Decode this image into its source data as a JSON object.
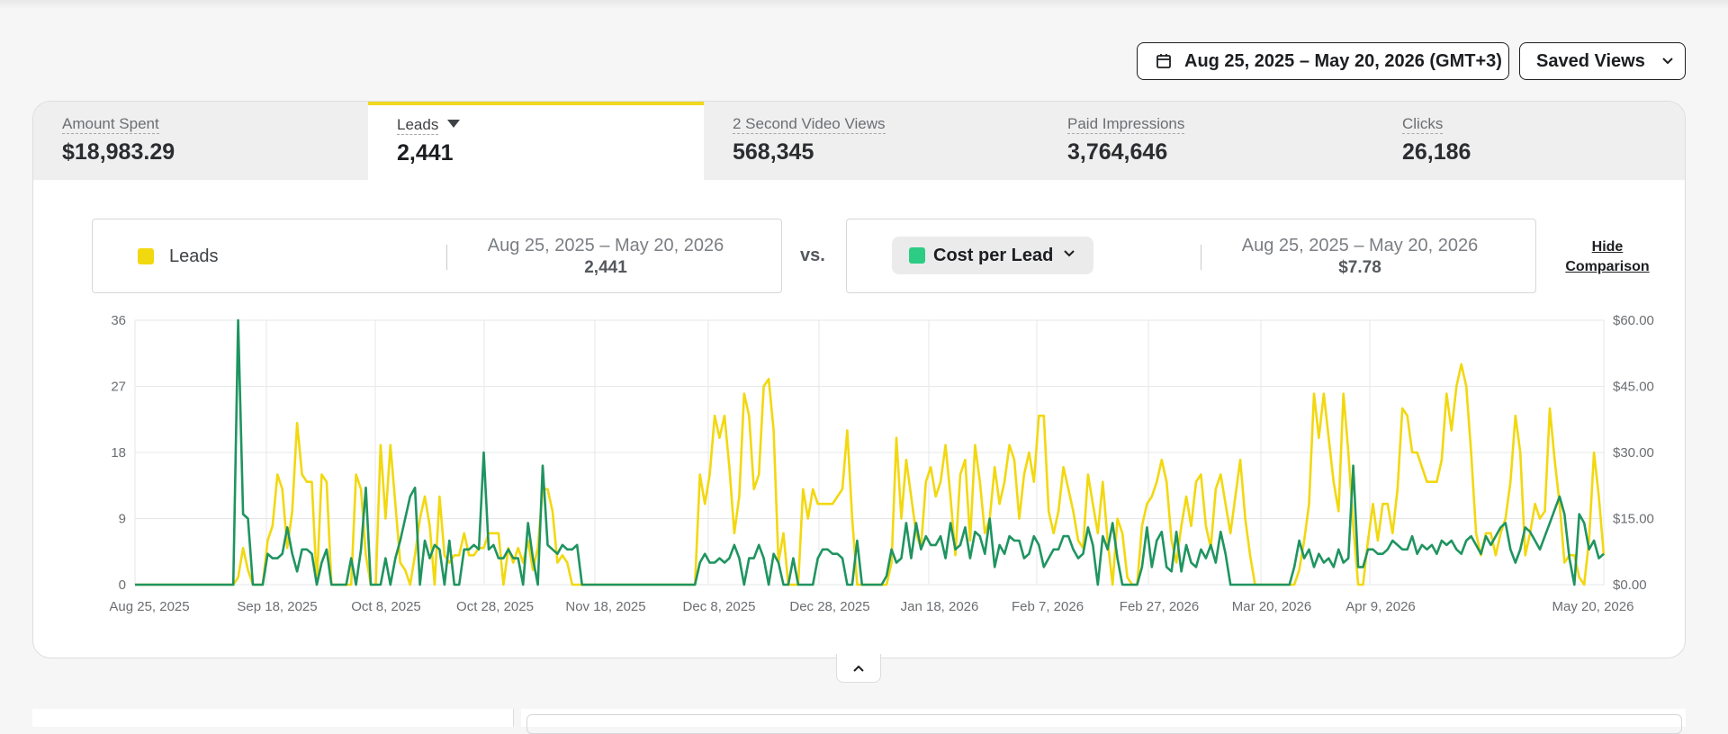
{
  "header": {
    "date_range": "Aug 25, 2025 – May 20, 2026 (GMT+3)",
    "saved_views_label": "Saved Views"
  },
  "tabs": [
    {
      "label": "Amount Spent",
      "value": "$18,983.29",
      "active": false
    },
    {
      "label": "Leads",
      "value": "2,441",
      "active": true
    },
    {
      "label": "2 Second Video Views",
      "value": "568,345",
      "active": false
    },
    {
      "label": "Paid Impressions",
      "value": "3,764,646",
      "active": false
    },
    {
      "label": "Clicks",
      "value": "26,186",
      "active": false
    }
  ],
  "comparison": {
    "primary": {
      "label": "Leads",
      "range": "Aug 25, 2025 – May 20, 2026",
      "value": "2,441",
      "color": "#f2d80f"
    },
    "vs_label": "vs.",
    "secondary": {
      "label": "Cost per Lead",
      "range": "Aug 25, 2025 – May 20, 2026",
      "value": "$7.78",
      "color": "#2dcc84"
    },
    "hide_label_line1": "Hide",
    "hide_label_line2": "Comparison"
  },
  "chart_data": {
    "type": "line",
    "x_start": "Aug 25, 2025",
    "x_end": "May 20, 2026",
    "x_tick_labels": [
      "Aug 25, 2025",
      "Sep 18, 2025",
      "Oct 8, 2025",
      "Oct 28, 2025",
      "Nov 18, 2025",
      "Dec 8, 2025",
      "Dec 28, 2025",
      "Jan 18, 2026",
      "Feb 7, 2026",
      "Feb 27, 2026",
      "Mar 20, 2026",
      "Apr 9, 2026",
      "May 20, 2026"
    ],
    "y_left_ticks": [
      "0",
      "9",
      "18",
      "27",
      "36"
    ],
    "y_left_range": [
      0,
      36
    ],
    "y_right_ticks": [
      "$0.00",
      "$15.00",
      "$30.00",
      "$45.00",
      "$60.00"
    ],
    "y_right_range": [
      0,
      60
    ],
    "grid": true,
    "series": [
      {
        "name": "Leads",
        "axis": "left",
        "color": "#f2d80f",
        "values": [
          0,
          0,
          0,
          0,
          0,
          0,
          0,
          0,
          0,
          0,
          0,
          0,
          0,
          0,
          0,
          0,
          0,
          0,
          0,
          0,
          0,
          1,
          5,
          2,
          0,
          0,
          0,
          6,
          8,
          15,
          13,
          5,
          10,
          22,
          15,
          14,
          14,
          0,
          15,
          14,
          0,
          0,
          0,
          0,
          0,
          15,
          13,
          4,
          0,
          0,
          19,
          9,
          19,
          11,
          3,
          2,
          0,
          4,
          9,
          12,
          8,
          0,
          12,
          4,
          3,
          4,
          4,
          7,
          4,
          4,
          5,
          5,
          7,
          7,
          7,
          0,
          5,
          3,
          5,
          3,
          6,
          2,
          5,
          13,
          13,
          10,
          3,
          4,
          3,
          0,
          0,
          0,
          0,
          0,
          0,
          0,
          0,
          0,
          0,
          0,
          0,
          0,
          0,
          0,
          0,
          0,
          0,
          0,
          0,
          0,
          0,
          0,
          0,
          0,
          0,
          15,
          11,
          15,
          23,
          20,
          23,
          16,
          7,
          12,
          26,
          23,
          13,
          15,
          27,
          28,
          21,
          3,
          7,
          0,
          0,
          0,
          13,
          9,
          13,
          11,
          11,
          11,
          11,
          12,
          13,
          21,
          9,
          0,
          0,
          0,
          0,
          0,
          0,
          0,
          3,
          20,
          9,
          17,
          12,
          7,
          5,
          14,
          16,
          12,
          14,
          19,
          12,
          4,
          15,
          17,
          6,
          19,
          14,
          7,
          9,
          16,
          11,
          14,
          19,
          17,
          9,
          15,
          18,
          14,
          23,
          23,
          10,
          7,
          10,
          16,
          13,
          10,
          6,
          5,
          15,
          11,
          7,
          14,
          6,
          0,
          9,
          7,
          1,
          0,
          0,
          8,
          11,
          12,
          14,
          17,
          14,
          6,
          3,
          8,
          12,
          8,
          14,
          15,
          8,
          5,
          13,
          15,
          11,
          7,
          12,
          17,
          9,
          4,
          0,
          0,
          0,
          0,
          0,
          0,
          0,
          0,
          0,
          2,
          6,
          11,
          26,
          20,
          26,
          20,
          14,
          10,
          26,
          18,
          8,
          0,
          0,
          6,
          11,
          6,
          11,
          11,
          7,
          13,
          24,
          23,
          18,
          18,
          16,
          14,
          14,
          14,
          17,
          26,
          21,
          27,
          30,
          27,
          18,
          7,
          4,
          7,
          7,
          4,
          7,
          9,
          14,
          23,
          18,
          4,
          7,
          11,
          9,
          10,
          24,
          17,
          11,
          3,
          4,
          4,
          1,
          0,
          6,
          18,
          12,
          4
        ],
        "note_values": "leads per day, read approximately from chart"
      },
      {
        "name": "Cost per Lead",
        "axis": "right",
        "color": "#1f9460",
        "values": [
          0,
          0,
          0,
          0,
          0,
          0,
          0,
          0,
          0,
          0,
          0,
          0,
          0,
          0,
          0,
          0,
          0,
          0,
          0,
          0,
          0,
          60,
          16,
          15,
          0,
          0,
          0,
          7,
          6,
          6,
          7,
          13,
          7,
          3,
          8,
          8,
          7,
          0,
          5,
          8,
          0,
          0,
          0,
          0,
          6,
          0,
          8,
          22,
          0,
          0,
          0,
          6,
          0,
          6,
          10,
          15,
          20,
          22,
          0,
          10,
          6,
          9,
          8,
          0,
          10,
          0,
          0,
          8,
          8,
          9,
          8,
          30,
          8,
          9,
          6,
          6,
          8,
          6,
          6,
          0,
          14,
          6,
          0,
          27,
          9,
          8,
          7,
          9,
          8,
          8,
          9,
          0,
          0,
          0,
          0,
          0,
          0,
          0,
          0,
          0,
          0,
          0,
          0,
          0,
          0,
          0,
          0,
          0,
          0,
          0,
          0,
          0,
          0,
          0,
          0,
          5,
          7,
          5,
          5,
          6,
          5,
          6,
          9,
          6,
          0,
          6,
          6,
          9,
          6,
          0,
          7,
          5,
          0,
          0,
          6,
          0,
          0,
          0,
          0,
          6,
          8,
          8,
          7,
          7,
          6,
          0,
          0,
          10,
          0,
          0,
          0,
          0,
          0,
          2,
          8,
          5,
          6,
          14,
          6,
          14,
          8,
          11,
          9,
          9,
          11,
          6,
          14,
          8,
          9,
          13,
          6,
          12,
          11,
          7,
          15,
          4,
          9,
          7,
          11,
          10,
          10,
          6,
          7,
          11,
          9,
          4,
          6,
          8,
          8,
          11,
          11,
          8,
          6,
          7,
          13,
          9,
          0,
          11,
          8,
          14,
          6,
          0,
          0,
          0,
          0,
          4,
          13,
          4,
          10,
          12,
          4,
          3,
          12,
          3,
          9,
          5,
          4,
          8,
          6,
          9,
          5,
          12,
          7,
          0,
          0,
          0,
          0,
          0,
          0,
          0,
          0,
          0,
          0,
          0,
          0,
          0,
          4,
          10,
          6,
          8,
          4,
          7,
          5,
          6,
          4,
          8,
          5,
          6,
          27,
          4,
          4,
          8,
          8,
          7,
          7,
          8,
          10,
          9,
          8,
          8,
          11,
          7,
          9,
          8,
          9,
          7,
          10,
          9,
          10,
          8,
          7,
          10,
          11,
          9,
          7,
          11,
          9,
          11,
          13,
          14,
          8,
          5,
          8,
          13,
          12,
          10,
          8,
          11,
          14,
          17,
          20,
          16,
          6,
          0,
          16,
          14,
          8,
          10,
          6,
          7
        ],
        "note_values": "cost per lead in dollars per day, read approximately from chart"
      }
    ]
  }
}
